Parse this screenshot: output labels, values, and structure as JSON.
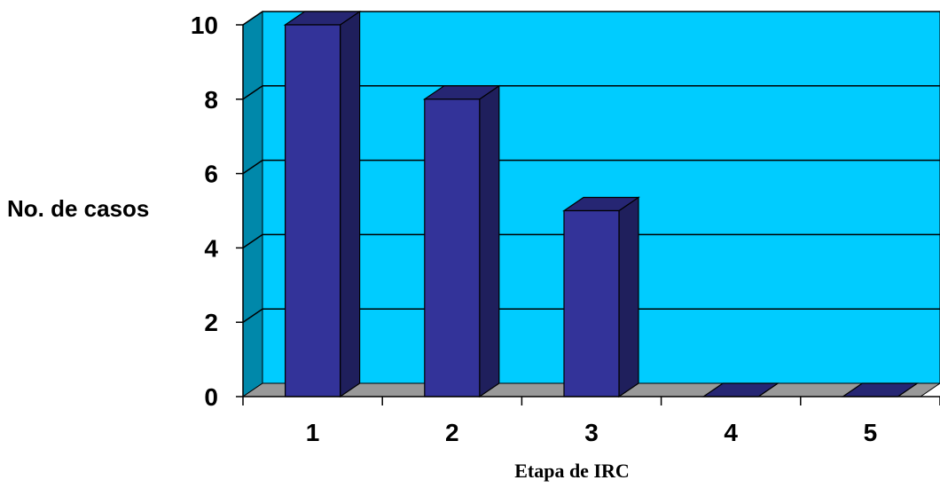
{
  "chart_data": {
    "type": "bar",
    "categories": [
      "1",
      "2",
      "3",
      "4",
      "5"
    ],
    "values": [
      10,
      8,
      5,
      0,
      0
    ],
    "xlabel": "Etapa de IRC",
    "ylabel": "No. de casos",
    "ylim": [
      0,
      10
    ],
    "yticks": [
      "0",
      "2",
      "4",
      "6",
      "8",
      "10"
    ],
    "grid": true,
    "three_d": true,
    "colors": {
      "back_wall": "#00CCFF",
      "side_wall": "#0088AA",
      "floor": "#999999",
      "bar_front": "#333399",
      "bar_side": "#1F1F5C",
      "bar_top": "#262673",
      "gridline": "#000000"
    }
  }
}
